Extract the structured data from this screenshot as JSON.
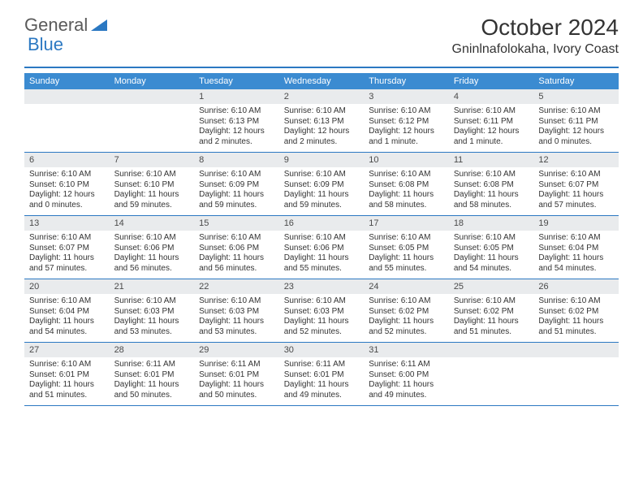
{
  "logo": {
    "text1": "General",
    "text2": "Blue"
  },
  "title": "October 2024",
  "location": "Gninlnafolokaha, Ivory Coast",
  "colors": {
    "header_bg": "#3b8bd1",
    "header_text": "#ffffff",
    "daynum_bg": "#e9ebed",
    "divider": "#2b78c2",
    "logo_gray": "#5a5a5a",
    "logo_blue": "#2b78c2"
  },
  "weekdays": [
    "Sunday",
    "Monday",
    "Tuesday",
    "Wednesday",
    "Thursday",
    "Friday",
    "Saturday"
  ],
  "leading_blanks": 2,
  "days": [
    {
      "n": 1,
      "sunrise": "6:10 AM",
      "sunset": "6:13 PM",
      "daylight": "12 hours and 2 minutes."
    },
    {
      "n": 2,
      "sunrise": "6:10 AM",
      "sunset": "6:13 PM",
      "daylight": "12 hours and 2 minutes."
    },
    {
      "n": 3,
      "sunrise": "6:10 AM",
      "sunset": "6:12 PM",
      "daylight": "12 hours and 1 minute."
    },
    {
      "n": 4,
      "sunrise": "6:10 AM",
      "sunset": "6:11 PM",
      "daylight": "12 hours and 1 minute."
    },
    {
      "n": 5,
      "sunrise": "6:10 AM",
      "sunset": "6:11 PM",
      "daylight": "12 hours and 0 minutes."
    },
    {
      "n": 6,
      "sunrise": "6:10 AM",
      "sunset": "6:10 PM",
      "daylight": "12 hours and 0 minutes."
    },
    {
      "n": 7,
      "sunrise": "6:10 AM",
      "sunset": "6:10 PM",
      "daylight": "11 hours and 59 minutes."
    },
    {
      "n": 8,
      "sunrise": "6:10 AM",
      "sunset": "6:09 PM",
      "daylight": "11 hours and 59 minutes."
    },
    {
      "n": 9,
      "sunrise": "6:10 AM",
      "sunset": "6:09 PM",
      "daylight": "11 hours and 59 minutes."
    },
    {
      "n": 10,
      "sunrise": "6:10 AM",
      "sunset": "6:08 PM",
      "daylight": "11 hours and 58 minutes."
    },
    {
      "n": 11,
      "sunrise": "6:10 AM",
      "sunset": "6:08 PM",
      "daylight": "11 hours and 58 minutes."
    },
    {
      "n": 12,
      "sunrise": "6:10 AM",
      "sunset": "6:07 PM",
      "daylight": "11 hours and 57 minutes."
    },
    {
      "n": 13,
      "sunrise": "6:10 AM",
      "sunset": "6:07 PM",
      "daylight": "11 hours and 57 minutes."
    },
    {
      "n": 14,
      "sunrise": "6:10 AM",
      "sunset": "6:06 PM",
      "daylight": "11 hours and 56 minutes."
    },
    {
      "n": 15,
      "sunrise": "6:10 AM",
      "sunset": "6:06 PM",
      "daylight": "11 hours and 56 minutes."
    },
    {
      "n": 16,
      "sunrise": "6:10 AM",
      "sunset": "6:06 PM",
      "daylight": "11 hours and 55 minutes."
    },
    {
      "n": 17,
      "sunrise": "6:10 AM",
      "sunset": "6:05 PM",
      "daylight": "11 hours and 55 minutes."
    },
    {
      "n": 18,
      "sunrise": "6:10 AM",
      "sunset": "6:05 PM",
      "daylight": "11 hours and 54 minutes."
    },
    {
      "n": 19,
      "sunrise": "6:10 AM",
      "sunset": "6:04 PM",
      "daylight": "11 hours and 54 minutes."
    },
    {
      "n": 20,
      "sunrise": "6:10 AM",
      "sunset": "6:04 PM",
      "daylight": "11 hours and 54 minutes."
    },
    {
      "n": 21,
      "sunrise": "6:10 AM",
      "sunset": "6:03 PM",
      "daylight": "11 hours and 53 minutes."
    },
    {
      "n": 22,
      "sunrise": "6:10 AM",
      "sunset": "6:03 PM",
      "daylight": "11 hours and 53 minutes."
    },
    {
      "n": 23,
      "sunrise": "6:10 AM",
      "sunset": "6:03 PM",
      "daylight": "11 hours and 52 minutes."
    },
    {
      "n": 24,
      "sunrise": "6:10 AM",
      "sunset": "6:02 PM",
      "daylight": "11 hours and 52 minutes."
    },
    {
      "n": 25,
      "sunrise": "6:10 AM",
      "sunset": "6:02 PM",
      "daylight": "11 hours and 51 minutes."
    },
    {
      "n": 26,
      "sunrise": "6:10 AM",
      "sunset": "6:02 PM",
      "daylight": "11 hours and 51 minutes."
    },
    {
      "n": 27,
      "sunrise": "6:10 AM",
      "sunset": "6:01 PM",
      "daylight": "11 hours and 51 minutes."
    },
    {
      "n": 28,
      "sunrise": "6:11 AM",
      "sunset": "6:01 PM",
      "daylight": "11 hours and 50 minutes."
    },
    {
      "n": 29,
      "sunrise": "6:11 AM",
      "sunset": "6:01 PM",
      "daylight": "11 hours and 50 minutes."
    },
    {
      "n": 30,
      "sunrise": "6:11 AM",
      "sunset": "6:01 PM",
      "daylight": "11 hours and 49 minutes."
    },
    {
      "n": 31,
      "sunrise": "6:11 AM",
      "sunset": "6:00 PM",
      "daylight": "11 hours and 49 minutes."
    }
  ],
  "labels": {
    "sunrise": "Sunrise:",
    "sunset": "Sunset:",
    "daylight": "Daylight:"
  }
}
